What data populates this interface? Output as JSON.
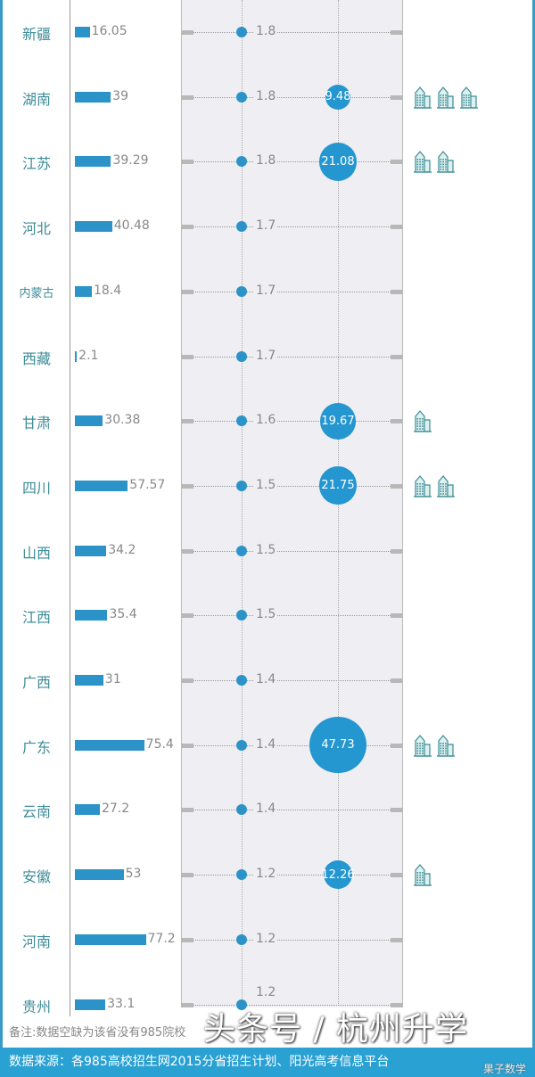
{
  "chart_data": {
    "type": "table",
    "categories": [
      "新疆",
      "湖南",
      "江苏",
      "河北",
      "内蒙古",
      "西藏",
      "甘肃",
      "四川",
      "山西",
      "江西",
      "广西",
      "广东",
      "云南",
      "安徽",
      "河南",
      "贵州"
    ],
    "series": [
      {
        "values": [
          16.05,
          39,
          39.29,
          40.48,
          18.4,
          2.1,
          30.38,
          57.57,
          34.2,
          35.4,
          31,
          75.4,
          27.2,
          53,
          77.2,
          33.1
        ]
      },
      {
        "values": [
          1.8,
          1.8,
          1.8,
          1.7,
          1.7,
          1.7,
          1.6,
          1.5,
          1.5,
          1.5,
          1.4,
          1.4,
          1.4,
          1.2,
          1.2,
          1.2
        ]
      },
      {
        "values": [
          null,
          9.48,
          21.08,
          null,
          null,
          null,
          19.67,
          21.75,
          null,
          null,
          null,
          47.73,
          null,
          12.26,
          null,
          null
        ]
      },
      {
        "icon": "building-icon",
        "values": [
          0,
          3,
          2,
          0,
          0,
          0,
          1,
          2,
          0,
          0,
          0,
          2,
          0,
          1,
          0,
          0
        ]
      }
    ],
    "colors": {
      "bar": "#2b93c8",
      "bubble": "#2496d0",
      "label": "#3c8c98",
      "footer": "#2aa1d3"
    }
  },
  "footer": {
    "note": "备注:数据空缺为该省没有985院校",
    "source": "数据来源：各985高校招生网2015分省招生计划、阳光高考信息平台"
  },
  "watermark": {
    "main": "头条号 / 杭州升学",
    "sub": "果子数学"
  }
}
